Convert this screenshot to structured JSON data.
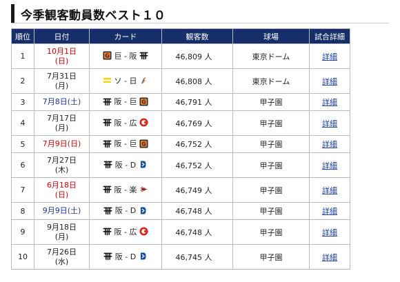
{
  "title": "今季観客動員数ベスト１０",
  "headers": [
    "順位",
    "日付",
    "カード",
    "観客数",
    "球場",
    "試合詳細"
  ],
  "rows": [
    {
      "rank": "1",
      "date_line1": "10月1日",
      "date_line2": "(日)",
      "day_type": "sun",
      "home_icon": "giants-logo-icon",
      "card": "巨 - 阪",
      "away_icon": "tigers-logo-icon",
      "attendance": "46,809 人",
      "venue": "東京ドーム",
      "detail": "詳細"
    },
    {
      "rank": "2",
      "date_line1": "7月31日",
      "date_line2": "(月)",
      "day_type": "weekday",
      "home_icon": "swallows-logo-icon",
      "card": "ソ - 日",
      "away_icon": "fighters-logo-icon",
      "attendance": "46,808 人",
      "venue": "東京ドーム",
      "detail": "詳細"
    },
    {
      "rank": "3",
      "date_line1": "7月8日(土)",
      "date_line2": "",
      "day_type": "sat",
      "home_icon": "tigers-logo-icon",
      "card": "阪 - 巨",
      "away_icon": "giants-logo-icon",
      "attendance": "46,791 人",
      "venue": "甲子園",
      "detail": "詳細"
    },
    {
      "rank": "4",
      "date_line1": "7月17日",
      "date_line2": "(月)",
      "day_type": "weekday",
      "home_icon": "tigers-logo-icon",
      "card": "阪 - 広",
      "away_icon": "carp-logo-icon",
      "attendance": "46,769 人",
      "venue": "甲子園",
      "detail": "詳細"
    },
    {
      "rank": "5",
      "date_line1": "7月9日(日)",
      "date_line2": "",
      "day_type": "sun",
      "home_icon": "tigers-logo-icon",
      "card": "阪 - 巨",
      "away_icon": "giants-logo-icon",
      "attendance": "46,752 人",
      "venue": "甲子園",
      "detail": "詳細"
    },
    {
      "rank": "6",
      "date_line1": "7月27日",
      "date_line2": "(木)",
      "day_type": "weekday",
      "home_icon": "tigers-logo-icon",
      "card": "阪 - D",
      "away_icon": "baystars-logo-icon",
      "attendance": "46,752 人",
      "venue": "甲子園",
      "detail": "詳細"
    },
    {
      "rank": "7",
      "date_line1": "6月18日",
      "date_line2": "(日)",
      "day_type": "sun",
      "home_icon": "tigers-logo-icon",
      "card": "阪 - 楽",
      "away_icon": "eagles-logo-icon",
      "attendance": "46,749 人",
      "venue": "甲子園",
      "detail": "詳細"
    },
    {
      "rank": "8",
      "date_line1": "9月9日(土)",
      "date_line2": "",
      "day_type": "sat",
      "home_icon": "tigers-logo-icon",
      "card": "阪 - D",
      "away_icon": "baystars-logo-icon",
      "attendance": "46,748 人",
      "venue": "甲子園",
      "detail": "詳細"
    },
    {
      "rank": "9",
      "date_line1": "9月18日",
      "date_line2": "(月)",
      "day_type": "weekday",
      "home_icon": "tigers-logo-icon",
      "card": "阪 - 広",
      "away_icon": "carp-logo-icon",
      "attendance": "46,748 人",
      "venue": "甲子園",
      "detail": "詳細"
    },
    {
      "rank": "10",
      "date_line1": "7月26日",
      "date_line2": "(水)",
      "day_type": "weekday",
      "home_icon": "tigers-logo-icon",
      "card": "阪 - D",
      "away_icon": "baystars-logo-icon",
      "attendance": "46,745 人",
      "venue": "甲子園",
      "detail": "詳細"
    }
  ],
  "colors": {
    "header_bg": "#162f6a",
    "sunday": "#d40000",
    "saturday": "#1d2fa3",
    "link": "#1f3fae",
    "grid": "#b9b9b9"
  }
}
